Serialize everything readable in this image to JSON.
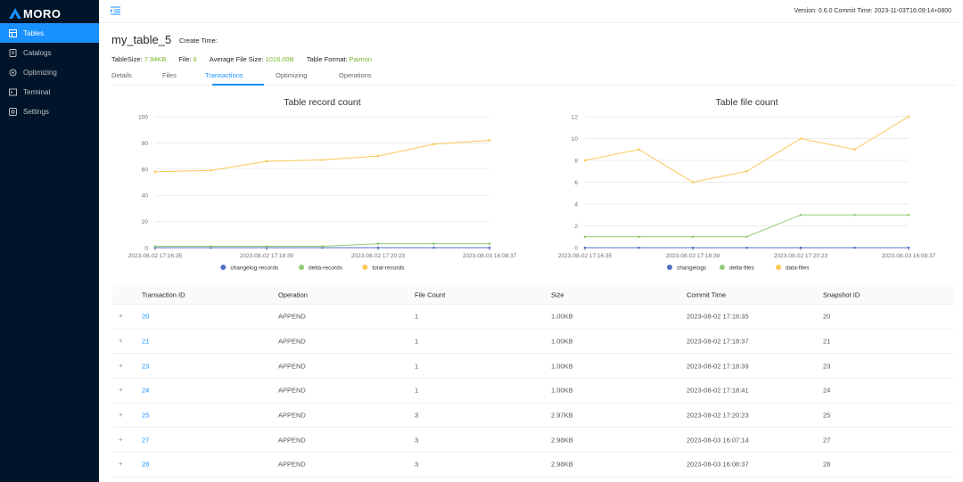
{
  "app": {
    "logo_text": "MORO",
    "version_text": "Version: 0.6.0   Commit Time: 2023-11-03T16:09:14+0800"
  },
  "sidebar": {
    "items": [
      {
        "label": "Tables",
        "icon": "table-icon"
      },
      {
        "label": "Catalogs",
        "icon": "catalog-icon"
      },
      {
        "label": "Optimizing",
        "icon": "optimizing-icon"
      },
      {
        "label": "Terminal",
        "icon": "terminal-icon"
      },
      {
        "label": "Settings",
        "icon": "settings-icon"
      }
    ]
  },
  "page": {
    "title": "my_table_5",
    "create_time_label": "Create Time:",
    "meta": {
      "size_label": "TableSize:",
      "size_value": "7.94KB",
      "file_label": "File:",
      "file_value": "8",
      "avg_label": "Average File Size:",
      "avg_value": "1016.00B",
      "format_label": "Table Format:",
      "format_value": "Paimon"
    },
    "tabs": [
      "Details",
      "Files",
      "Transactions",
      "Optimizing",
      "Operations"
    ],
    "active_tab": "Transactions"
  },
  "chart_data": [
    {
      "type": "line",
      "title": "Table record count",
      "x": [
        "2023-08-02 17:16:35",
        "2023-08-02 17:18:37",
        "2023-08-02 17:18:39",
        "2023-08-02 17:18:41",
        "2023-08-02 17:20:23",
        "2023-08-03 16:07:14",
        "2023-08-03 16:08:37"
      ],
      "x_tick_labels": [
        "2023-08-02 17:16:35",
        "2023-08-02 17:18:39",
        "2023-08-02 17:20:23",
        "2023-08-03 16:08:37"
      ],
      "ylim": [
        0,
        100
      ],
      "yticks": [
        0,
        20,
        40,
        60,
        80,
        100
      ],
      "series": [
        {
          "name": "changelog-records",
          "color": "#5470c6",
          "values": [
            0,
            0,
            0,
            0,
            0,
            0,
            0
          ]
        },
        {
          "name": "delta-records",
          "color": "#91cc75",
          "values": [
            1,
            1,
            1,
            1,
            3,
            3,
            3
          ]
        },
        {
          "name": "total-records",
          "color": "#fac858",
          "values": [
            58,
            59,
            66,
            67,
            70,
            79,
            82
          ]
        }
      ],
      "legend": "bottom"
    },
    {
      "type": "line",
      "title": "Table file count",
      "x": [
        "2023-08-02 17:16:35",
        "2023-08-02 17:18:37",
        "2023-08-02 17:18:39",
        "2023-08-02 17:18:41",
        "2023-08-02 17:20:23",
        "2023-08-03 16:07:14",
        "2023-08-03 16:08:37"
      ],
      "x_tick_labels": [
        "2023-08-02 17:16:35",
        "2023-08-02 17:18:39",
        "2023-08-02 17:20:23",
        "2023-08-03 16:08:37"
      ],
      "ylim": [
        0,
        12
      ],
      "yticks": [
        0,
        2,
        4,
        6,
        8,
        10,
        12
      ],
      "series": [
        {
          "name": "changelogs",
          "color": "#5470c6",
          "values": [
            0,
            0,
            0,
            0,
            0,
            0,
            0
          ]
        },
        {
          "name": "delta-files",
          "color": "#91cc75",
          "values": [
            1,
            1,
            1,
            1,
            3,
            3,
            3
          ]
        },
        {
          "name": "data-files",
          "color": "#fac858",
          "values": [
            8,
            9,
            6,
            7,
            10,
            9,
            12
          ]
        }
      ],
      "legend": "bottom"
    }
  ],
  "table": {
    "columns": [
      "Transaction ID",
      "Operation",
      "File Count",
      "Size",
      "Commit Time",
      "Snapshot ID"
    ],
    "rows": [
      [
        "20",
        "APPEND",
        "1",
        "1.00KB",
        "2023-08-02 17:16:35",
        "20"
      ],
      [
        "21",
        "APPEND",
        "1",
        "1.00KB",
        "2023-08-02 17:18:37",
        "21"
      ],
      [
        "23",
        "APPEND",
        "1",
        "1.00KB",
        "2023-08-02 17:18:39",
        "23"
      ],
      [
        "24",
        "APPEND",
        "1",
        "1.00KB",
        "2023-08-02 17:18:41",
        "24"
      ],
      [
        "25",
        "APPEND",
        "3",
        "2.97KB",
        "2023-08-02 17:20:23",
        "25"
      ],
      [
        "27",
        "APPEND",
        "3",
        "2.98KB",
        "2023-08-03 16:07:14",
        "27"
      ],
      [
        "28",
        "APPEND",
        "3",
        "2.98KB",
        "2023-08-03 16:08:37",
        "28"
      ]
    ],
    "expand_symbol": "+"
  }
}
